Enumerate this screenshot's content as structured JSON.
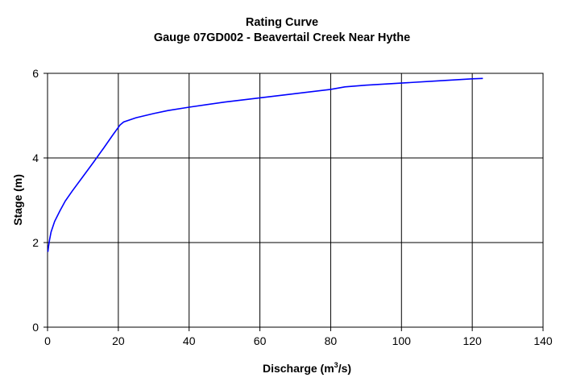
{
  "chart_data": {
    "type": "line",
    "title": "Rating Curve",
    "subtitle": "Gauge 07GD002 - Beavertail Creek Near Hythe",
    "xlabel": {
      "prefix": "Discharge (m",
      "sup": "3",
      "suffix": "/s)"
    },
    "ylabel": "Stage (m)",
    "xlim": [
      0,
      140
    ],
    "ylim": [
      0,
      6
    ],
    "xticks": [
      0,
      20,
      40,
      60,
      80,
      100,
      120,
      140
    ],
    "yticks": [
      0,
      2,
      4,
      6
    ],
    "grid": true,
    "legend": "none",
    "line_color": "#0000ff",
    "series": [
      {
        "x": [
          0.1,
          0.3,
          0.6,
          1.0,
          2.0,
          3.5,
          5.0,
          7.0,
          10.0,
          13.0,
          16.0,
          18.5,
          20.5,
          21.5,
          25.0,
          30.0,
          34.0,
          40.0,
          50.0,
          60.0,
          70.0,
          80.0,
          84.0,
          90.0,
          100.0,
          110.0,
          120.0,
          123.0
        ],
        "y": [
          1.78,
          1.92,
          2.08,
          2.25,
          2.5,
          2.75,
          2.98,
          3.22,
          3.56,
          3.9,
          4.25,
          4.55,
          4.78,
          4.85,
          4.95,
          5.05,
          5.12,
          5.2,
          5.32,
          5.42,
          5.52,
          5.62,
          5.68,
          5.72,
          5.77,
          5.82,
          5.87,
          5.88
        ]
      }
    ]
  }
}
